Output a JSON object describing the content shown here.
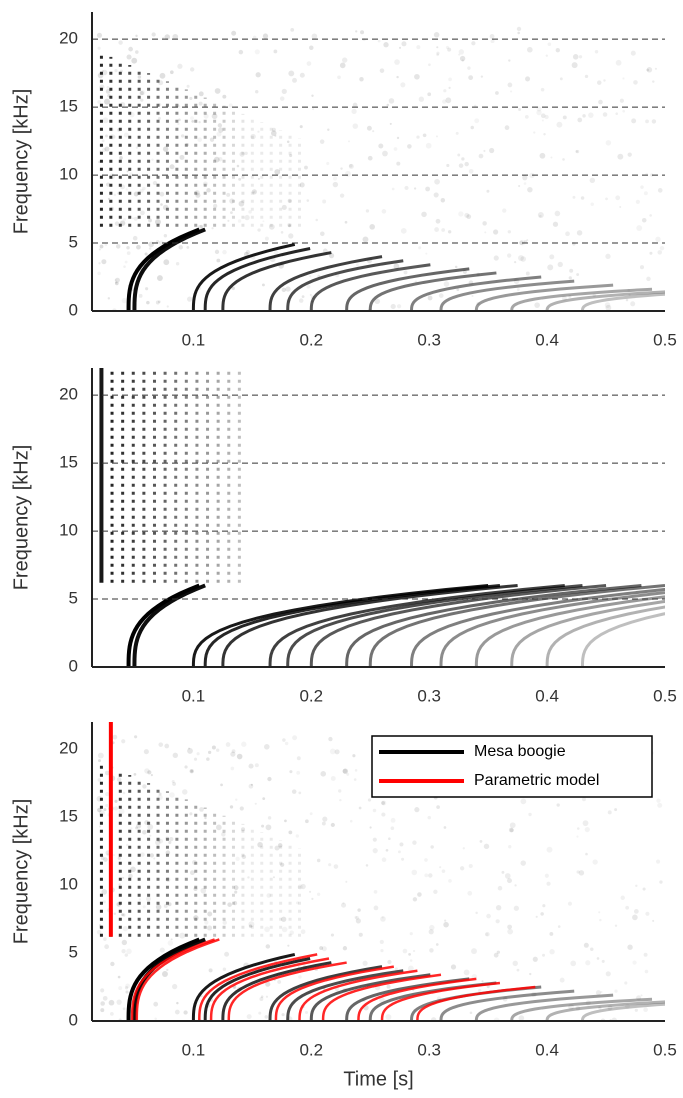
{
  "chart_data": [
    {
      "type": "spectrogram",
      "ylabel": "Frequency [kHz]",
      "xlim": [
        0.014,
        0.5
      ],
      "ylim": [
        0,
        22
      ],
      "xticks": [
        0.1,
        0.2,
        0.3,
        0.4,
        0.5
      ],
      "yticks": [
        0,
        5,
        10,
        15,
        20
      ],
      "hlines": [
        5,
        10,
        15,
        20
      ]
    },
    {
      "type": "spectrogram",
      "ylabel": "Frequency [kHz]",
      "xlim": [
        0.014,
        0.5
      ],
      "ylim": [
        0,
        22
      ],
      "xticks": [
        0.1,
        0.2,
        0.3,
        0.4,
        0.5
      ],
      "yticks": [
        0,
        5,
        10,
        15,
        20
      ],
      "hlines": [
        5,
        10,
        15,
        20
      ]
    },
    {
      "type": "spectrogram",
      "ylabel": "Frequency [kHz]",
      "xlabel": "Time [s]",
      "xlim": [
        0.014,
        0.5
      ],
      "ylim": [
        0,
        22
      ],
      "xticks": [
        0.1,
        0.2,
        0.3,
        0.4,
        0.5
      ],
      "yticks": [
        0,
        5,
        10,
        15,
        20
      ],
      "legend": "upper right",
      "series": [
        {
          "name": "Mesa boogie",
          "color": "#000000"
        },
        {
          "name": "Parametric model",
          "color": "#ff0000"
        }
      ]
    }
  ]
}
